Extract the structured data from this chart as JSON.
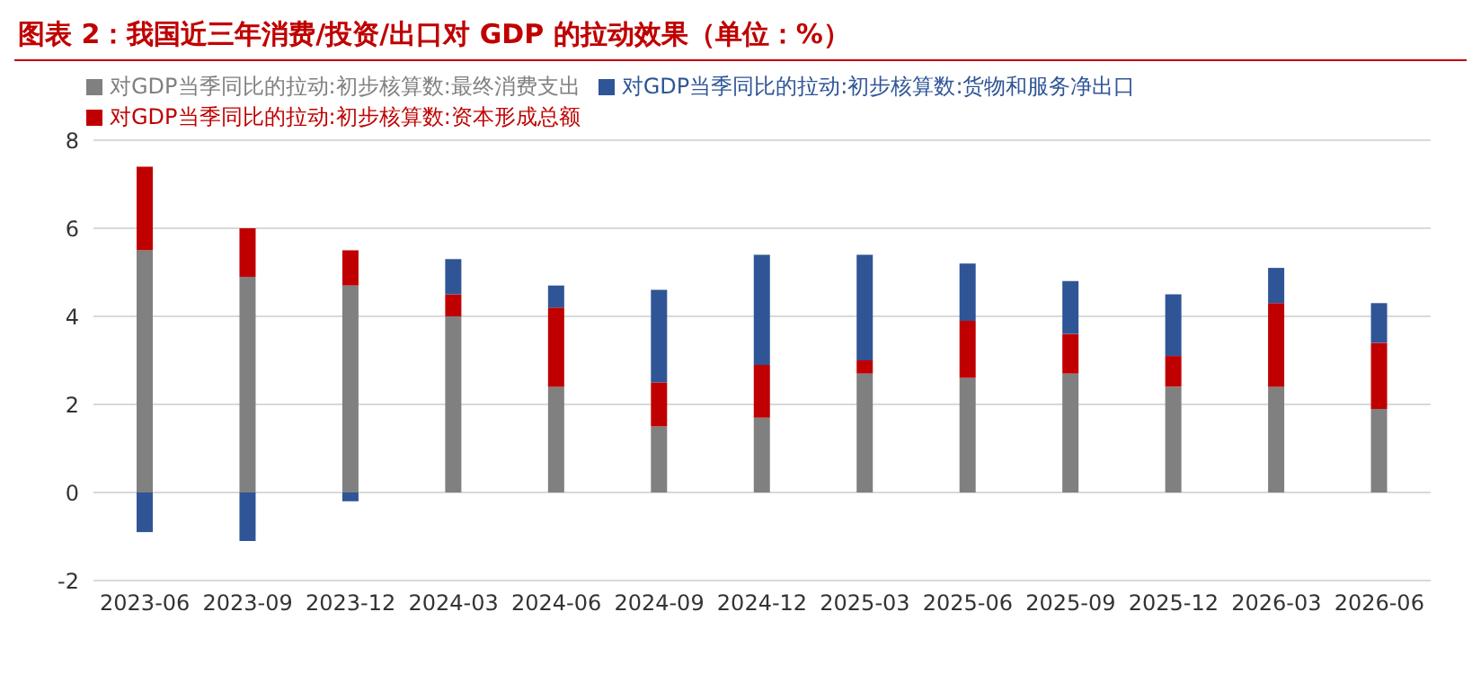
{
  "chart_data": {
    "type": "bar",
    "title": "图表 2：我国近三年消费/投资/出口对 GDP 的拉动效果（单位：%）",
    "stacked": true,
    "legend": "top left",
    "grid": "y",
    "categories": [
      "2023-06",
      "2023-09",
      "2023-12",
      "2024-03",
      "2024-06",
      "2024-09",
      "2024-12",
      "2025-03",
      "2025-06",
      "2025-09",
      "2025-12",
      "2026-03",
      "2026-06"
    ],
    "ylim": [
      -2,
      8
    ],
    "yticks": [
      -2,
      0,
      2,
      4,
      6,
      8
    ],
    "series": [
      {
        "name": "对GDP当季同比的拉动:初步核算数:最终消费支出",
        "color": "#808080",
        "values": [
          5.5,
          4.9,
          4.7,
          4.0,
          2.4,
          1.5,
          1.7,
          2.7,
          2.6,
          2.7,
          2.4,
          2.4,
          1.9
        ]
      },
      {
        "name": "对GDP当季同比的拉动:初步核算数:资本形成总额",
        "color": "#c00000",
        "values": [
          1.9,
          1.1,
          0.8,
          0.5,
          1.8,
          1.0,
          1.2,
          0.3,
          1.3,
          0.9,
          0.7,
          1.9,
          1.5
        ]
      },
      {
        "name": "对GDP当季同比的拉动:初步核算数:货物和服务净出口",
        "color": "#2f5597",
        "values": [
          -0.9,
          -1.1,
          -0.2,
          0.8,
          0.5,
          2.1,
          2.5,
          2.4,
          1.3,
          1.2,
          1.4,
          0.8,
          0.9
        ]
      }
    ]
  }
}
